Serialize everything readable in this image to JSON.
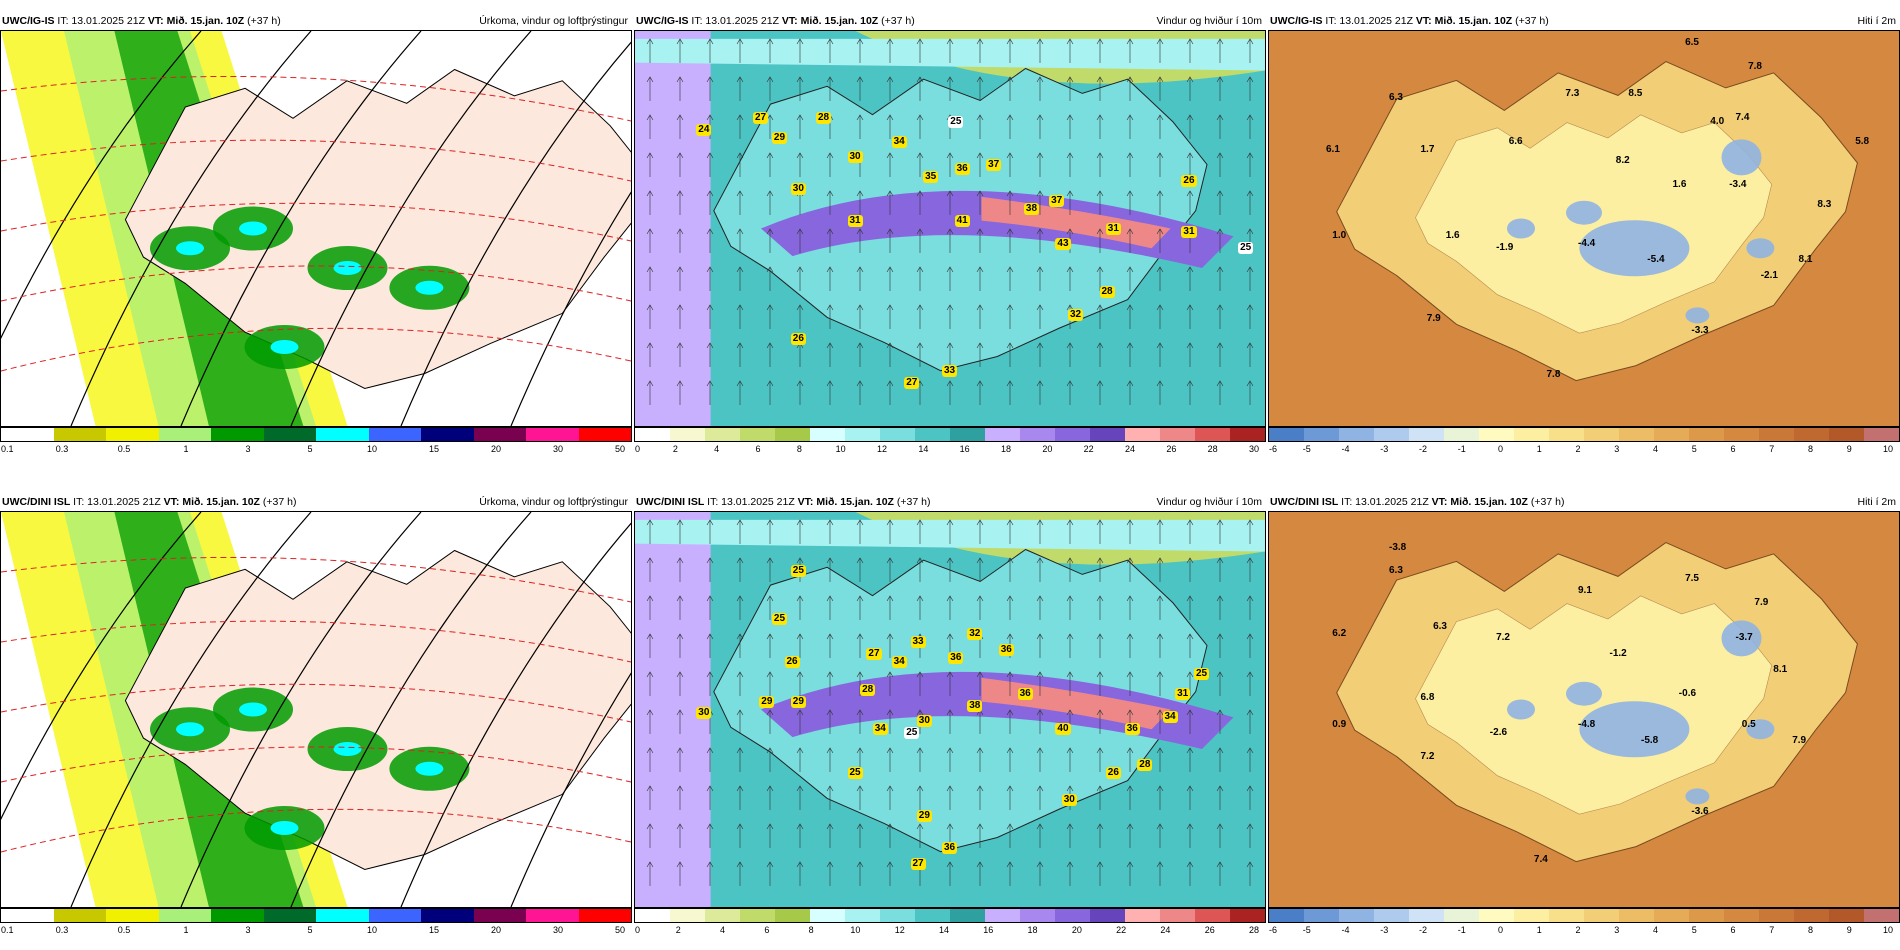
{
  "rows": [
    {
      "id": "top",
      "panels": [
        {
          "type": "precip",
          "model": "UWC/IG-IS",
          "it": "IT: 13.01.2025 21Z",
          "vt": "VT: Mið. 15.jan. 10Z",
          "lead": "(+37 h)",
          "title": "Úrkoma, vindur og loftþrýstingur",
          "colorbar": [
            "#ffffff",
            "#c8c800",
            "#f0f000",
            "#a8f07a",
            "#009a00",
            "#006a2a",
            "#00ffff",
            "#3c64ff",
            "#00007a",
            "#7a0050",
            "#ff1493",
            "#ff0000"
          ],
          "ticks": [
            "0.1",
            "0.3",
            "0.5",
            "1",
            "3",
            "5",
            "10",
            "15",
            "20",
            "30",
            "50"
          ]
        },
        {
          "type": "wind",
          "model": "UWC/IG-IS",
          "it": "IT: 13.01.2025 21Z",
          "vt": "VT: Mið. 15.jan. 10Z",
          "lead": "(+37 h)",
          "title": "Vindur og hviður í 10m",
          "colorbar": [
            "#ffffff",
            "#f7f7d0",
            "#dcea9a",
            "#c1db6a",
            "#a6c94a",
            "#d8ffff",
            "#a8f2f2",
            "#7adede",
            "#4cc4c4",
            "#2ea0a0",
            "#c8b0ff",
            "#a888ee",
            "#8866dd",
            "#6644bb",
            "#ffb0b0",
            "#ee8888",
            "#dd5555",
            "#aa2222"
          ],
          "ticks": [
            "0",
            "2",
            "4",
            "6",
            "8",
            "10",
            "12",
            "14",
            "16",
            "18",
            "20",
            "22",
            "24",
            "26",
            "28",
            "30"
          ],
          "labels": [
            "24",
            "27",
            "28",
            "29",
            "30",
            "30",
            "34",
            "36",
            "37",
            "35",
            "41",
            "38",
            "37",
            "43",
            "31",
            "31",
            "26",
            "28",
            "32",
            "26",
            "27",
            "33",
            "31",
            "25",
            "25"
          ]
        },
        {
          "type": "temp",
          "model": "UWC/IG-IS",
          "it": "IT: 13.01.2025 21Z",
          "vt": "VT: Mið. 15.jan. 10Z",
          "lead": "(+37 h)",
          "title": "Hiti í 2m",
          "colorbar": [
            "#4a7fc8",
            "#6d99d6",
            "#8fb3e2",
            "#aecbee",
            "#cfe2f6",
            "#e8f3d8",
            "#fffbc0",
            "#fcefa2",
            "#f8e08a",
            "#f2cf76",
            "#ecbd64",
            "#e5ab56",
            "#dd994a",
            "#d48840",
            "#ca7838",
            "#bf6830",
            "#b35828",
            "#c27070"
          ],
          "ticks": [
            "-6",
            "-5",
            "-4",
            "-3",
            "-2",
            "-1",
            "0",
            "1",
            "2",
            "3",
            "4",
            "5",
            "6",
            "7",
            "8",
            "9",
            "10"
          ],
          "labels": [
            "6.5",
            "7.8",
            "6.3",
            "7.3",
            "8.5",
            "4.0",
            "7.4",
            "6.1",
            "1.7",
            "6.6",
            "8.2",
            "5.8",
            "1.6",
            "-3.4",
            "8.3",
            "1.0",
            "1.6",
            "-1.9",
            "-4.4",
            "-5.4",
            "8.1",
            "-2.1",
            "7.9",
            "-3.3",
            "7.8"
          ]
        }
      ]
    },
    {
      "id": "bottom",
      "panels": [
        {
          "type": "precip",
          "model": "UWC/DINI ISL",
          "it": "IT: 13.01.2025 21Z",
          "vt": "VT: Mið. 15.jan. 10Z",
          "lead": "(+37 h)",
          "title": "Úrkoma, vindur og loftþrýstingur",
          "colorbar": [
            "#ffffff",
            "#c8c800",
            "#f0f000",
            "#a8f07a",
            "#009a00",
            "#006a2a",
            "#00ffff",
            "#3c64ff",
            "#00007a",
            "#7a0050",
            "#ff1493",
            "#ff0000"
          ],
          "ticks": [
            "0.1",
            "0.3",
            "0.5",
            "1",
            "3",
            "5",
            "10",
            "15",
            "20",
            "30",
            "50"
          ]
        },
        {
          "type": "wind",
          "model": "UWC/DINI ISL",
          "it": "IT: 13.01.2025 21Z",
          "vt": "VT: Mið. 15.jan. 10Z",
          "lead": "(+37 h)",
          "title": "Vindur og hviður í 10m",
          "colorbar": [
            "#ffffff",
            "#f7f7d0",
            "#dcea9a",
            "#c1db6a",
            "#a6c94a",
            "#d8ffff",
            "#a8f2f2",
            "#7adede",
            "#4cc4c4",
            "#2ea0a0",
            "#c8b0ff",
            "#a888ee",
            "#8866dd",
            "#6644bb",
            "#ffb0b0",
            "#ee8888",
            "#dd5555",
            "#aa2222"
          ],
          "ticks": [
            "0",
            "2",
            "4",
            "6",
            "8",
            "10",
            "12",
            "14",
            "16",
            "18",
            "20",
            "22",
            "24",
            "26",
            "28"
          ],
          "labels": [
            "25",
            "25",
            "26",
            "27",
            "28",
            "33",
            "34",
            "36",
            "36",
            "32",
            "38",
            "36",
            "40",
            "36",
            "34",
            "31",
            "25",
            "30",
            "29",
            "29",
            "34",
            "30",
            "25",
            "26",
            "28",
            "30",
            "29",
            "27",
            "36",
            "25"
          ]
        },
        {
          "type": "temp",
          "model": "UWC/DINI ISL",
          "it": "IT: 13.01.2025 21Z",
          "vt": "VT: Mið. 15.jan. 10Z",
          "lead": "(+37 h)",
          "title": "Hiti í 2m",
          "colorbar": [
            "#4a7fc8",
            "#6d99d6",
            "#8fb3e2",
            "#aecbee",
            "#cfe2f6",
            "#e8f3d8",
            "#fffbc0",
            "#fcefa2",
            "#f8e08a",
            "#f2cf76",
            "#ecbd64",
            "#e5ab56",
            "#dd994a",
            "#d48840",
            "#ca7838",
            "#bf6830",
            "#b35828",
            "#c27070"
          ],
          "ticks": [
            "-6",
            "-5",
            "-4",
            "-3",
            "-2",
            "-1",
            "0",
            "1",
            "2",
            "3",
            "4",
            "5",
            "6",
            "7",
            "8",
            "9",
            "10"
          ],
          "labels": [
            "-3.8",
            "6.3",
            "7.5",
            "9.1",
            "7.9",
            "6.2",
            "6.3",
            "7.2",
            "-1.2",
            "-3.7",
            "8.1",
            "6.8",
            "-0.6",
            "0.9",
            "-2.6",
            "-4.8",
            "-5.8",
            "0.5",
            "7.9",
            "7.2",
            "-3.6",
            "7.4"
          ]
        }
      ]
    }
  ]
}
